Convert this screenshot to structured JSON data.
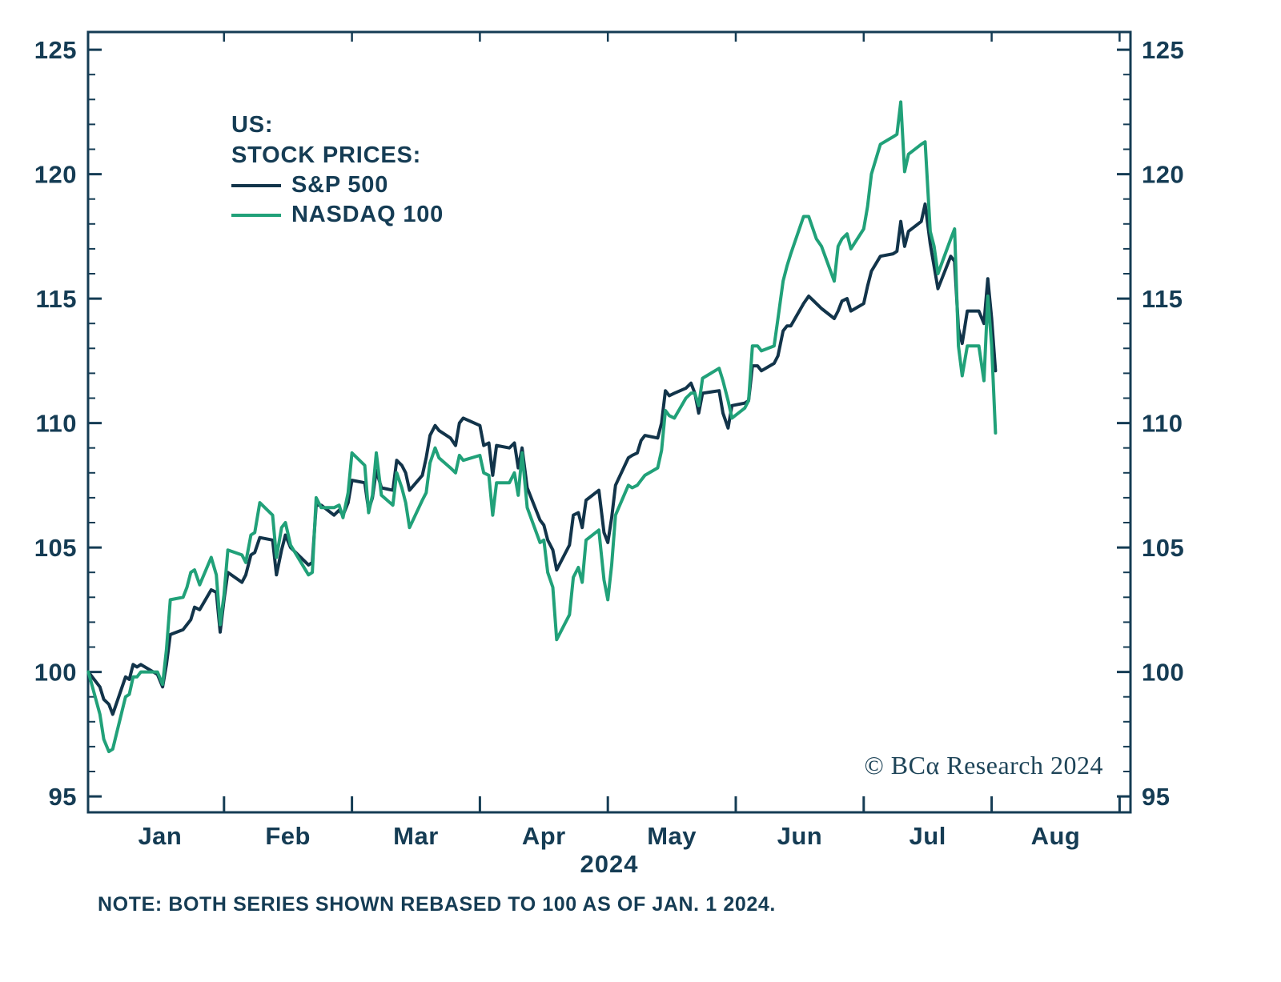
{
  "meta": {
    "source_credit": "© BCα Research 2024"
  },
  "legend": {
    "region_line": "US:",
    "title_line": "STOCK PRICES:",
    "entries": [
      {
        "label": "S&P 500",
        "color": "#12344A"
      },
      {
        "label": "NASDAQ 100",
        "color": "#21A179"
      }
    ]
  },
  "note": "NOTE: BOTH SERIES SHOWN REBASED TO 100 AS OF JAN. 1 2024.",
  "chart_data": {
    "type": "line",
    "title": "US: STOCK PRICES",
    "xlabel": "",
    "ylabel": "",
    "grid": false,
    "legend_position": "upper-left-inside",
    "x_axis": {
      "unit": "months since Jan 1, 2024",
      "year": "2024",
      "months": [
        "Jan",
        "Feb",
        "Mar",
        "Apr",
        "May",
        "Jun",
        "Jul",
        "Aug"
      ],
      "domain": [
        -0.07,
        8.08
      ],
      "month_boundary_ticks": [
        1,
        2,
        3,
        4,
        5,
        6,
        7,
        8
      ]
    },
    "y_axis": {
      "min": 95,
      "max": 125,
      "major_ticks": [
        95,
        100,
        105,
        110,
        115,
        120,
        125
      ],
      "minor_step": 1,
      "label_sides": "both"
    },
    "series": [
      {
        "name": "S&P 500",
        "color": "#12344A",
        "points": [
          [
            -0.06,
            100.0
          ],
          [
            0.03,
            99.4
          ],
          [
            0.06,
            98.9
          ],
          [
            0.1,
            98.7
          ],
          [
            0.13,
            98.3
          ],
          [
            0.23,
            99.8
          ],
          [
            0.26,
            99.7
          ],
          [
            0.29,
            100.3
          ],
          [
            0.32,
            100.2
          ],
          [
            0.35,
            100.3
          ],
          [
            0.48,
            99.9
          ],
          [
            0.52,
            99.4
          ],
          [
            0.55,
            100.3
          ],
          [
            0.58,
            101.5
          ],
          [
            0.68,
            101.7
          ],
          [
            0.71,
            101.9
          ],
          [
            0.74,
            102.1
          ],
          [
            0.77,
            102.6
          ],
          [
            0.81,
            102.5
          ],
          [
            0.9,
            103.3
          ],
          [
            0.94,
            103.2
          ],
          [
            0.97,
            101.6
          ],
          [
            1.0,
            102.9
          ],
          [
            1.03,
            104.0
          ],
          [
            1.14,
            103.6
          ],
          [
            1.17,
            103.9
          ],
          [
            1.21,
            104.7
          ],
          [
            1.24,
            104.8
          ],
          [
            1.28,
            105.4
          ],
          [
            1.38,
            105.3
          ],
          [
            1.41,
            103.9
          ],
          [
            1.45,
            104.9
          ],
          [
            1.48,
            105.5
          ],
          [
            1.52,
            105.0
          ],
          [
            1.66,
            104.3
          ],
          [
            1.69,
            104.4
          ],
          [
            1.72,
            106.7
          ],
          [
            1.76,
            106.7
          ],
          [
            1.86,
            106.3
          ],
          [
            1.9,
            106.5
          ],
          [
            1.93,
            106.3
          ],
          [
            1.97,
            106.8
          ],
          [
            2.0,
            107.7
          ],
          [
            2.1,
            107.6
          ],
          [
            2.13,
            106.5
          ],
          [
            2.16,
            107.0
          ],
          [
            2.19,
            108.1
          ],
          [
            2.23,
            107.4
          ],
          [
            2.32,
            107.3
          ],
          [
            2.35,
            108.5
          ],
          [
            2.39,
            108.3
          ],
          [
            2.42,
            108.0
          ],
          [
            2.45,
            107.3
          ],
          [
            2.55,
            107.9
          ],
          [
            2.58,
            108.6
          ],
          [
            2.61,
            109.5
          ],
          [
            2.65,
            109.9
          ],
          [
            2.68,
            109.7
          ],
          [
            2.77,
            109.4
          ],
          [
            2.81,
            109.1
          ],
          [
            2.84,
            110.0
          ],
          [
            2.87,
            110.2
          ],
          [
            3.0,
            109.9
          ],
          [
            3.03,
            109.1
          ],
          [
            3.07,
            109.2
          ],
          [
            3.1,
            107.9
          ],
          [
            3.13,
            109.1
          ],
          [
            3.23,
            109.0
          ],
          [
            3.27,
            109.2
          ],
          [
            3.3,
            108.2
          ],
          [
            3.33,
            109.0
          ],
          [
            3.37,
            107.4
          ],
          [
            3.47,
            106.1
          ],
          [
            3.5,
            105.9
          ],
          [
            3.53,
            105.3
          ],
          [
            3.57,
            104.9
          ],
          [
            3.6,
            104.1
          ],
          [
            3.7,
            105.1
          ],
          [
            3.73,
            106.3
          ],
          [
            3.77,
            106.4
          ],
          [
            3.8,
            105.8
          ],
          [
            3.83,
            106.9
          ],
          [
            3.93,
            107.3
          ],
          [
            3.97,
            105.6
          ],
          [
            4.0,
            105.2
          ],
          [
            4.03,
            106.2
          ],
          [
            4.06,
            107.5
          ],
          [
            4.16,
            108.6
          ],
          [
            4.19,
            108.7
          ],
          [
            4.23,
            108.8
          ],
          [
            4.26,
            109.3
          ],
          [
            4.29,
            109.5
          ],
          [
            4.39,
            109.4
          ],
          [
            4.42,
            110.0
          ],
          [
            4.45,
            111.3
          ],
          [
            4.48,
            111.1
          ],
          [
            4.52,
            111.2
          ],
          [
            4.61,
            111.4
          ],
          [
            4.65,
            111.6
          ],
          [
            4.68,
            111.2
          ],
          [
            4.71,
            110.4
          ],
          [
            4.74,
            111.2
          ],
          [
            4.87,
            111.3
          ],
          [
            4.9,
            110.4
          ],
          [
            4.94,
            109.8
          ],
          [
            4.97,
            110.7
          ],
          [
            5.07,
            110.8
          ],
          [
            5.1,
            110.9
          ],
          [
            5.13,
            112.3
          ],
          [
            5.17,
            112.3
          ],
          [
            5.2,
            112.1
          ],
          [
            5.3,
            112.4
          ],
          [
            5.33,
            112.7
          ],
          [
            5.37,
            113.7
          ],
          [
            5.4,
            113.9
          ],
          [
            5.43,
            113.9
          ],
          [
            5.53,
            114.8
          ],
          [
            5.57,
            115.1
          ],
          [
            5.63,
            114.8
          ],
          [
            5.67,
            114.6
          ],
          [
            5.77,
            114.2
          ],
          [
            5.8,
            114.5
          ],
          [
            5.83,
            114.9
          ],
          [
            5.87,
            115.0
          ],
          [
            5.9,
            114.5
          ],
          [
            6.0,
            114.8
          ],
          [
            6.03,
            115.5
          ],
          [
            6.06,
            116.1
          ],
          [
            6.13,
            116.7
          ],
          [
            6.23,
            116.8
          ],
          [
            6.26,
            116.9
          ],
          [
            6.29,
            118.1
          ],
          [
            6.32,
            117.1
          ],
          [
            6.35,
            117.7
          ],
          [
            6.45,
            118.1
          ],
          [
            6.48,
            118.8
          ],
          [
            6.52,
            117.2
          ],
          [
            6.55,
            116.3
          ],
          [
            6.58,
            115.4
          ],
          [
            6.68,
            116.7
          ],
          [
            6.71,
            116.5
          ],
          [
            6.74,
            113.8
          ],
          [
            6.77,
            113.2
          ],
          [
            6.81,
            114.5
          ],
          [
            6.9,
            114.5
          ],
          [
            6.94,
            114.0
          ],
          [
            6.97,
            115.8
          ],
          [
            7.0,
            114.2
          ],
          [
            7.03,
            112.1
          ]
        ]
      },
      {
        "name": "NASDAQ 100",
        "color": "#21A179",
        "points": [
          [
            -0.06,
            100.0
          ],
          [
            0.03,
            98.3
          ],
          [
            0.06,
            97.3
          ],
          [
            0.1,
            96.8
          ],
          [
            0.13,
            96.9
          ],
          [
            0.23,
            99.0
          ],
          [
            0.26,
            99.1
          ],
          [
            0.29,
            99.8
          ],
          [
            0.32,
            99.8
          ],
          [
            0.35,
            100.0
          ],
          [
            0.48,
            100.0
          ],
          [
            0.52,
            99.5
          ],
          [
            0.55,
            100.9
          ],
          [
            0.58,
            102.9
          ],
          [
            0.68,
            103.0
          ],
          [
            0.71,
            103.4
          ],
          [
            0.74,
            104.0
          ],
          [
            0.77,
            104.1
          ],
          [
            0.81,
            103.5
          ],
          [
            0.9,
            104.6
          ],
          [
            0.94,
            103.9
          ],
          [
            0.97,
            101.9
          ],
          [
            1.0,
            103.1
          ],
          [
            1.03,
            104.9
          ],
          [
            1.14,
            104.7
          ],
          [
            1.17,
            104.4
          ],
          [
            1.21,
            105.5
          ],
          [
            1.24,
            105.6
          ],
          [
            1.28,
            106.8
          ],
          [
            1.38,
            106.3
          ],
          [
            1.41,
            104.6
          ],
          [
            1.45,
            105.8
          ],
          [
            1.48,
            106.0
          ],
          [
            1.52,
            105.1
          ],
          [
            1.66,
            103.9
          ],
          [
            1.69,
            104.0
          ],
          [
            1.72,
            107.0
          ],
          [
            1.76,
            106.6
          ],
          [
            1.86,
            106.6
          ],
          [
            1.9,
            106.7
          ],
          [
            1.93,
            106.2
          ],
          [
            1.97,
            107.2
          ],
          [
            2.0,
            108.8
          ],
          [
            2.1,
            108.3
          ],
          [
            2.13,
            106.4
          ],
          [
            2.16,
            107.1
          ],
          [
            2.19,
            108.8
          ],
          [
            2.23,
            107.1
          ],
          [
            2.32,
            106.7
          ],
          [
            2.35,
            108.0
          ],
          [
            2.39,
            107.4
          ],
          [
            2.42,
            106.8
          ],
          [
            2.45,
            105.8
          ],
          [
            2.55,
            106.9
          ],
          [
            2.58,
            107.2
          ],
          [
            2.61,
            108.4
          ],
          [
            2.65,
            109.0
          ],
          [
            2.68,
            108.6
          ],
          [
            2.77,
            108.2
          ],
          [
            2.81,
            108.0
          ],
          [
            2.84,
            108.7
          ],
          [
            2.87,
            108.5
          ],
          [
            3.0,
            108.7
          ],
          [
            3.03,
            108.0
          ],
          [
            3.07,
            107.9
          ],
          [
            3.1,
            106.3
          ],
          [
            3.13,
            107.6
          ],
          [
            3.23,
            107.6
          ],
          [
            3.27,
            108.0
          ],
          [
            3.3,
            107.1
          ],
          [
            3.33,
            108.8
          ],
          [
            3.37,
            106.6
          ],
          [
            3.47,
            105.2
          ],
          [
            3.5,
            105.3
          ],
          [
            3.53,
            104.0
          ],
          [
            3.57,
            103.4
          ],
          [
            3.6,
            101.3
          ],
          [
            3.7,
            102.3
          ],
          [
            3.73,
            103.8
          ],
          [
            3.77,
            104.2
          ],
          [
            3.8,
            103.6
          ],
          [
            3.83,
            105.3
          ],
          [
            3.93,
            105.7
          ],
          [
            3.97,
            103.7
          ],
          [
            4.0,
            102.9
          ],
          [
            4.03,
            104.3
          ],
          [
            4.06,
            106.3
          ],
          [
            4.16,
            107.5
          ],
          [
            4.19,
            107.4
          ],
          [
            4.23,
            107.5
          ],
          [
            4.26,
            107.7
          ],
          [
            4.29,
            107.9
          ],
          [
            4.39,
            108.2
          ],
          [
            4.42,
            108.9
          ],
          [
            4.45,
            110.5
          ],
          [
            4.48,
            110.3
          ],
          [
            4.52,
            110.2
          ],
          [
            4.61,
            111.0
          ],
          [
            4.65,
            111.2
          ],
          [
            4.68,
            111.2
          ],
          [
            4.71,
            110.7
          ],
          [
            4.74,
            111.8
          ],
          [
            4.87,
            112.2
          ],
          [
            4.9,
            111.7
          ],
          [
            4.94,
            110.9
          ],
          [
            4.97,
            110.2
          ],
          [
            5.07,
            110.6
          ],
          [
            5.1,
            110.9
          ],
          [
            5.13,
            113.1
          ],
          [
            5.17,
            113.1
          ],
          [
            5.2,
            112.9
          ],
          [
            5.3,
            113.1
          ],
          [
            5.33,
            114.2
          ],
          [
            5.37,
            115.7
          ],
          [
            5.4,
            116.3
          ],
          [
            5.43,
            116.8
          ],
          [
            5.53,
            118.3
          ],
          [
            5.57,
            118.3
          ],
          [
            5.63,
            117.4
          ],
          [
            5.67,
            117.1
          ],
          [
            5.77,
            115.7
          ],
          [
            5.8,
            117.1
          ],
          [
            5.83,
            117.4
          ],
          [
            5.87,
            117.6
          ],
          [
            5.9,
            117.0
          ],
          [
            6.0,
            117.8
          ],
          [
            6.03,
            118.7
          ],
          [
            6.06,
            120.0
          ],
          [
            6.13,
            121.2
          ],
          [
            6.23,
            121.5
          ],
          [
            6.26,
            121.6
          ],
          [
            6.29,
            122.9
          ],
          [
            6.32,
            120.1
          ],
          [
            6.35,
            120.8
          ],
          [
            6.45,
            121.2
          ],
          [
            6.48,
            121.3
          ],
          [
            6.52,
            117.7
          ],
          [
            6.55,
            117.1
          ],
          [
            6.58,
            116.0
          ],
          [
            6.68,
            117.4
          ],
          [
            6.71,
            117.8
          ],
          [
            6.74,
            113.1
          ],
          [
            6.77,
            111.9
          ],
          [
            6.81,
            113.1
          ],
          [
            6.9,
            113.1
          ],
          [
            6.94,
            111.7
          ],
          [
            6.97,
            115.1
          ],
          [
            7.0,
            113.1
          ],
          [
            7.03,
            109.6
          ]
        ]
      }
    ],
    "annotations": [
      "© BCα Research 2024"
    ],
    "note": "NOTE: BOTH SERIES SHOWN REBASED TO 100 AS OF JAN. 1 2024."
  }
}
